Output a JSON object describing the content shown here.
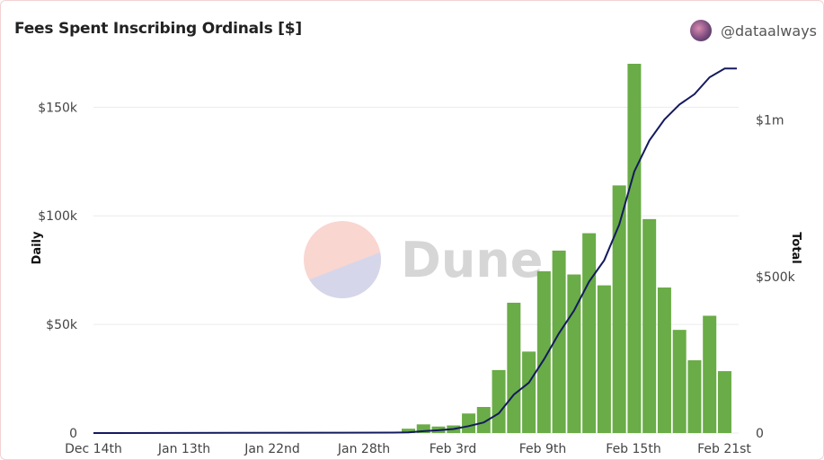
{
  "header": {
    "title": "Fees Spent Inscribing Ordinals [$]",
    "author": "@dataalways"
  },
  "watermark": {
    "text": "Dune"
  },
  "colors": {
    "bar": "#6aac47",
    "line": "#141a5e",
    "grid": "#ececec"
  },
  "chart_data": {
    "type": "bar",
    "x_ticks": [
      "Dec 14th",
      "Jan 13th",
      "Jan 22nd",
      "Jan 28th",
      "Feb 3rd",
      "Feb 9th",
      "Feb 15th",
      "Feb 21st"
    ],
    "y_ticks_left": [
      "0",
      "$50k",
      "$100k",
      "$150k"
    ],
    "y_ticks_right": [
      "0",
      "$500k",
      "$1m"
    ],
    "ylabel_left": "Daily",
    "ylabel_right": "Total",
    "ylim_left": [
      0,
      170000
    ],
    "ylim_right": [
      0,
      1180000
    ],
    "grid": true,
    "series": [
      {
        "name": "Daily",
        "type": "bar",
        "values": [
          2000,
          4000,
          3000,
          3500,
          9000,
          12000,
          29000,
          60000,
          37500,
          74500,
          84000,
          73000,
          92000,
          68000,
          114000,
          170000,
          98500,
          67000,
          47500,
          33500,
          54000,
          28500
        ]
      },
      {
        "name": "Total",
        "type": "line",
        "values": [
          2000,
          6000,
          9000,
          13000,
          22000,
          34000,
          63000,
          123000,
          161000,
          235000,
          319000,
          392000,
          484000,
          552000,
          666000,
          836000,
          935000,
          1002000,
          1050000,
          1083000,
          1137000,
          1165000
        ]
      }
    ]
  }
}
